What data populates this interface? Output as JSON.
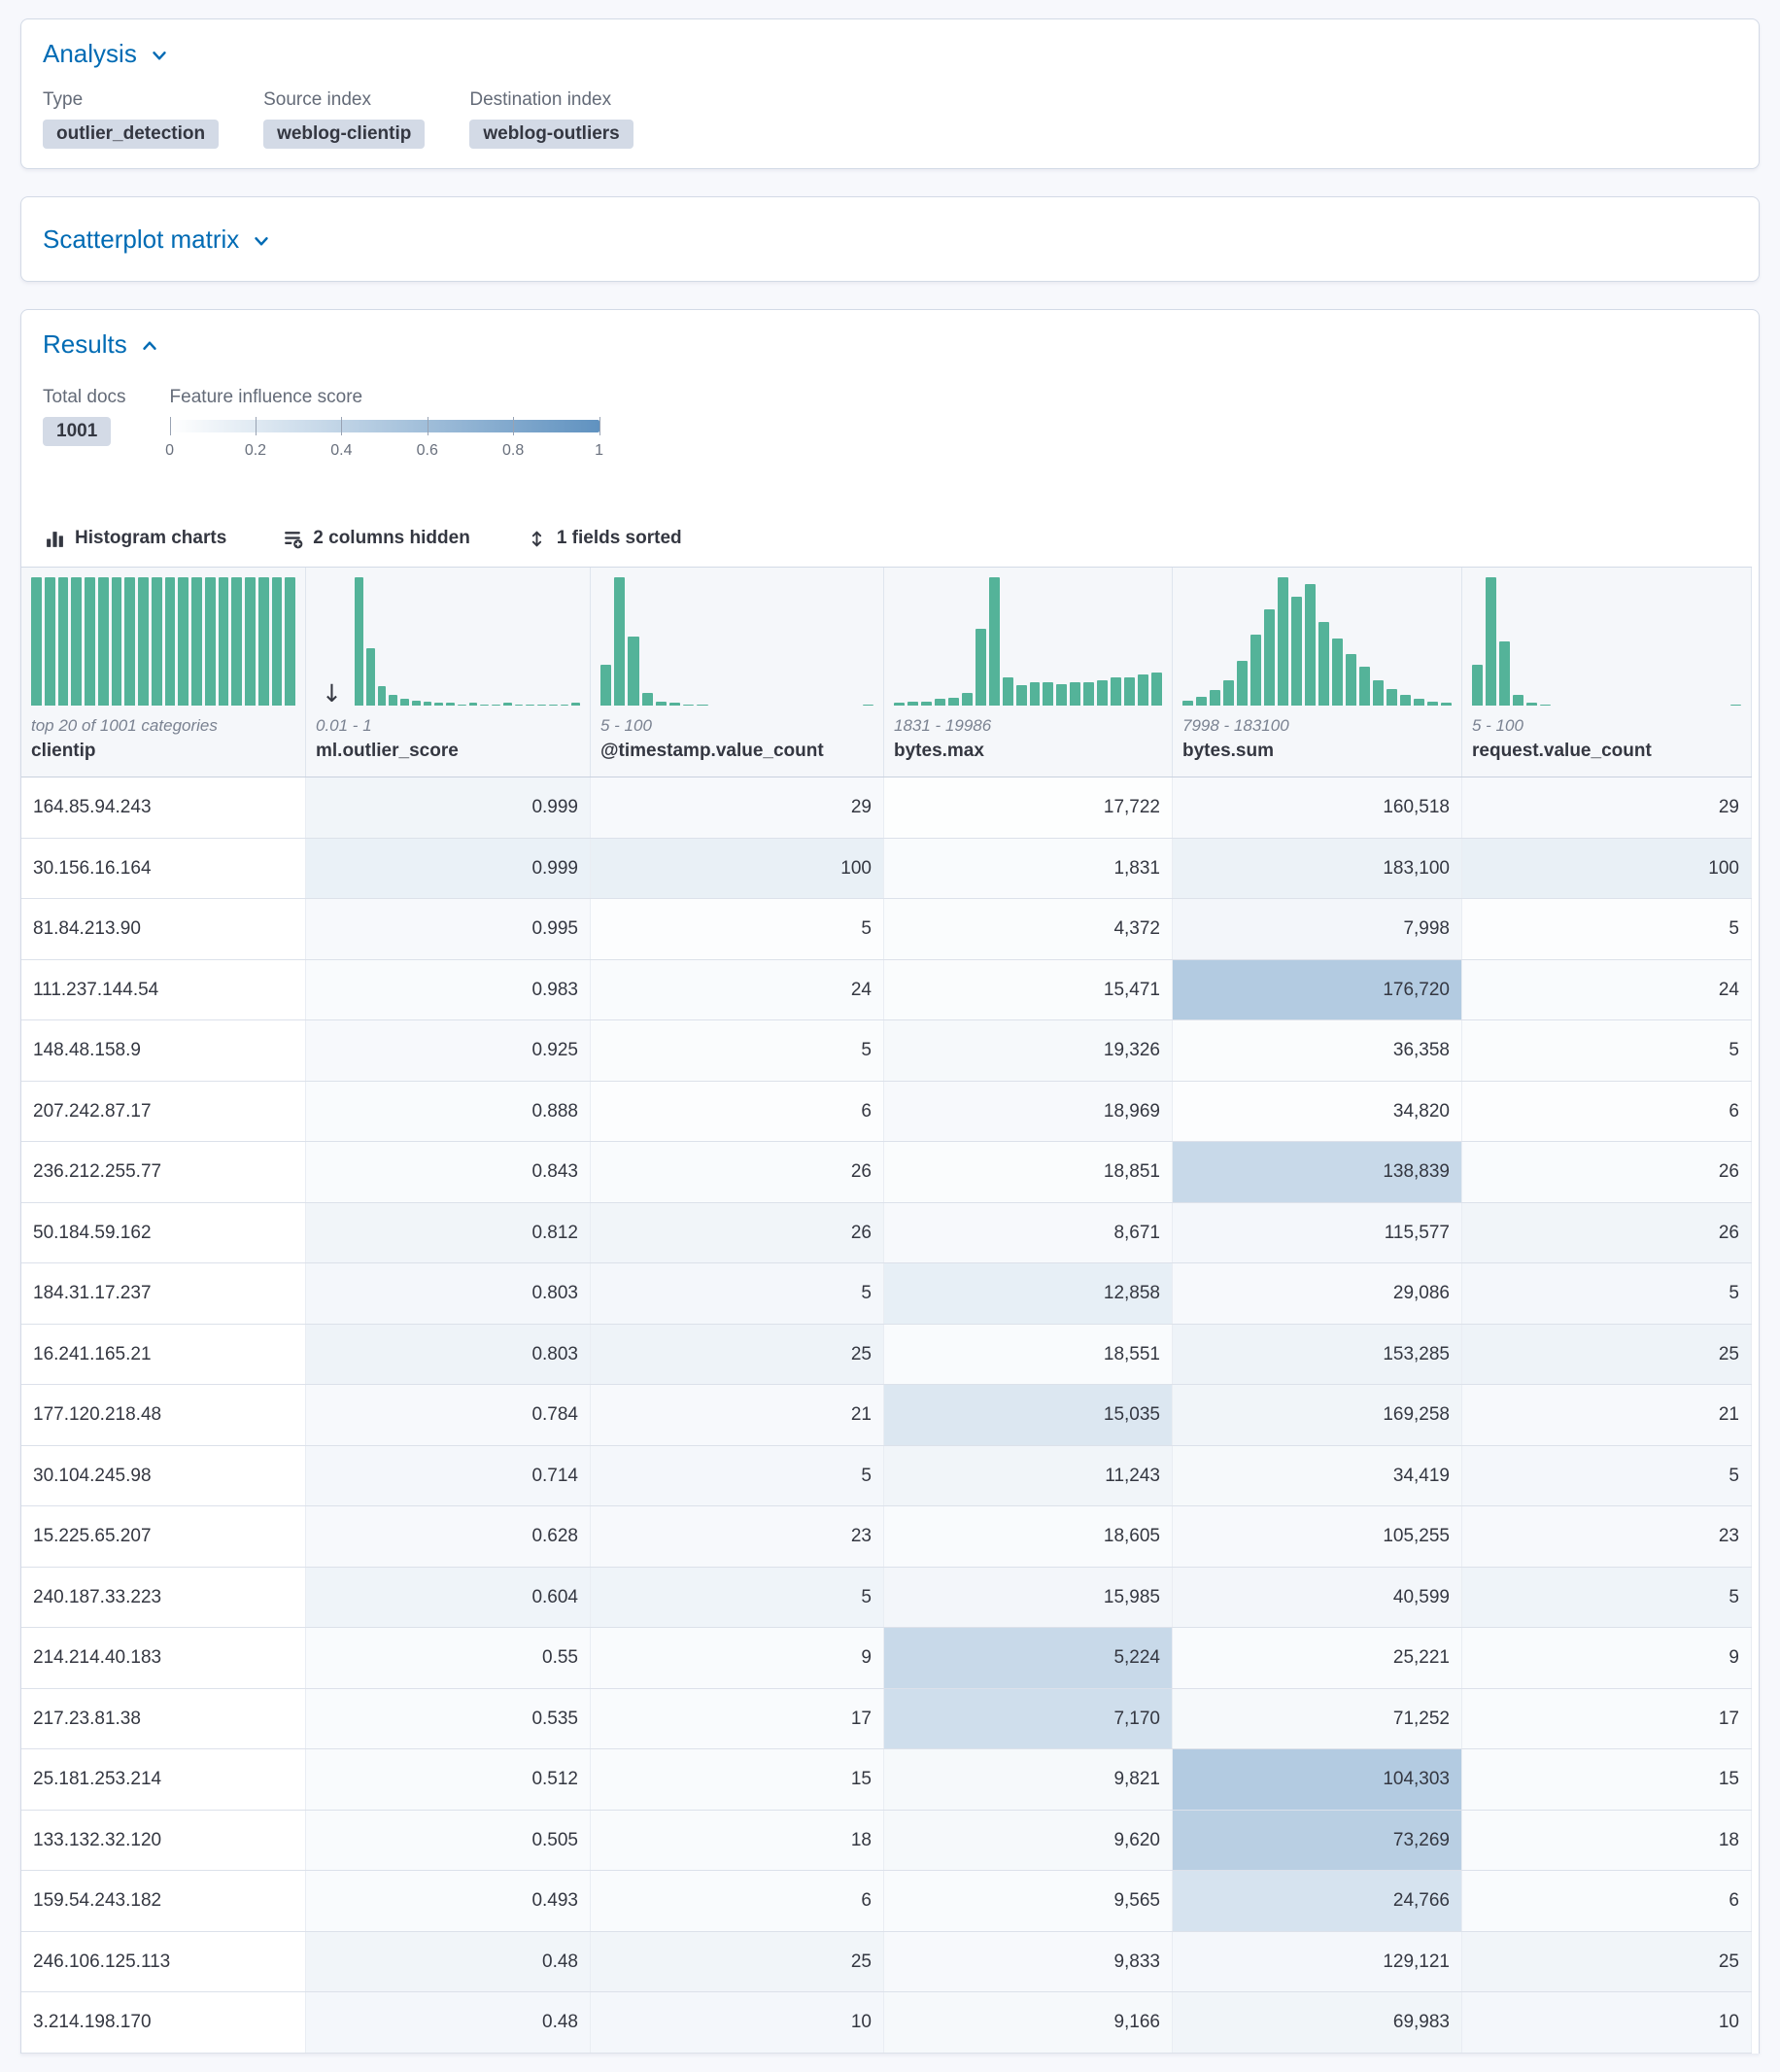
{
  "colors": {
    "accent": "#006BB4",
    "bar": "#54B399",
    "influence_rgb": "96,146,192",
    "badge_bg": "#D3DAE6"
  },
  "icons": {
    "analysis_chevron": "chevron-down",
    "scatterplot_chevron": "chevron-down",
    "results_chevron": "chevron-up",
    "histogram_charts": "bar-histogram",
    "columns_hidden": "list-add",
    "fields_sorted": "sort-arrows",
    "sort_indicator": "arrow-down"
  },
  "analysis": {
    "title": "Analysis",
    "fields": [
      {
        "label": "Type",
        "value": "outlier_detection"
      },
      {
        "label": "Source index",
        "value": "weblog-clientip"
      },
      {
        "label": "Destination index",
        "value": "weblog-outliers"
      }
    ]
  },
  "scatterplot": {
    "title": "Scatterplot matrix"
  },
  "results": {
    "title": "Results",
    "total_docs_label": "Total docs",
    "total_docs_value": "1001",
    "influence_label": "Feature influence score",
    "legend_ticks": [
      "0",
      "0.2",
      "0.4",
      "0.6",
      "0.8",
      "1"
    ],
    "toolbar": {
      "histogram_charts": "Histogram charts",
      "columns_hidden": "2 columns hidden",
      "fields_sorted": "1 fields sorted"
    }
  },
  "grid": {
    "columns": [
      {
        "id": "clientip",
        "name": "clientip",
        "range": "top 20 of 1001 categories",
        "sorted": false,
        "hist": [
          1,
          1,
          1,
          1,
          1,
          1,
          1,
          1,
          1,
          1,
          1,
          1,
          1,
          1,
          1,
          1,
          1,
          1,
          1,
          1
        ]
      },
      {
        "id": "outlier-score",
        "name": "ml.outlier_score",
        "range": "0.01 - 1",
        "sorted": true,
        "hist": [
          1,
          0.45,
          0.15,
          0.08,
          0.05,
          0.04,
          0.03,
          0.02,
          0.02,
          0.01,
          0.02,
          0.01,
          0.01,
          0.02,
          0.01,
          0.01,
          0.01,
          0.01,
          0.01,
          0.02
        ]
      },
      {
        "id": "timestamp-value-count",
        "name": "@timestamp.value_count",
        "range": "5 - 100",
        "sorted": false,
        "hist": [
          0.32,
          1,
          0.54,
          0.1,
          0.03,
          0.02,
          0.01,
          0.01,
          0,
          0,
          0,
          0,
          0,
          0,
          0,
          0,
          0,
          0,
          0,
          0.01
        ]
      },
      {
        "id": "bytes-max",
        "name": "bytes.max",
        "range": "1831 - 19986",
        "sorted": false,
        "hist": [
          0.02,
          0.03,
          0.03,
          0.05,
          0.06,
          0.1,
          0.6,
          1,
          0.22,
          0.16,
          0.18,
          0.18,
          0.17,
          0.18,
          0.18,
          0.2,
          0.22,
          0.22,
          0.24,
          0.26
        ]
      },
      {
        "id": "bytes-sum",
        "name": "bytes.sum",
        "range": "7998 - 183100",
        "sorted": false,
        "hist": [
          0.04,
          0.07,
          0.12,
          0.2,
          0.35,
          0.55,
          0.75,
          1,
          0.85,
          0.95,
          0.65,
          0.52,
          0.4,
          0.3,
          0.2,
          0.13,
          0.08,
          0.05,
          0.03,
          0.02
        ]
      },
      {
        "id": "request-value-count",
        "name": "request.value_count",
        "range": "5 - 100",
        "sorted": false,
        "hist": [
          0.32,
          1,
          0.5,
          0.08,
          0.02,
          0.01,
          0,
          0,
          0,
          0,
          0,
          0,
          0,
          0,
          0,
          0,
          0,
          0,
          0,
          0.01
        ]
      }
    ],
    "rows": [
      {
        "values": [
          "164.85.94.243",
          "0.999",
          "29",
          "17,722",
          "160,518",
          "29"
        ],
        "shades": [
          0,
          0.09,
          0.05,
          0.01,
          0.05,
          0.05
        ]
      },
      {
        "values": [
          "30.156.16.164",
          "0.999",
          "100",
          "1,831",
          "183,100",
          "100"
        ],
        "shades": [
          0,
          0.13,
          0.14,
          0.04,
          0.12,
          0.14
        ]
      },
      {
        "values": [
          "81.84.213.90",
          "0.995",
          "5",
          "4,372",
          "7,998",
          "5"
        ],
        "shades": [
          0,
          0.05,
          0.02,
          0.03,
          0.08,
          0.02
        ]
      },
      {
        "values": [
          "111.237.144.54",
          "0.983",
          "24",
          "15,471",
          "176,720",
          "24"
        ],
        "shades": [
          0,
          0.04,
          0.04,
          0.03,
          0.48,
          0.04
        ]
      },
      {
        "values": [
          "148.48.158.9",
          "0.925",
          "5",
          "19,326",
          "36,358",
          "5"
        ],
        "shades": [
          0,
          0.05,
          0.03,
          0.06,
          0.03,
          0.03
        ]
      },
      {
        "values": [
          "207.242.87.17",
          "0.888",
          "6",
          "18,969",
          "34,820",
          "6"
        ],
        "shades": [
          0,
          0.04,
          0.02,
          0.05,
          0.02,
          0.02
        ]
      },
      {
        "values": [
          "236.212.255.77",
          "0.843",
          "26",
          "18,851",
          "138,839",
          "26"
        ],
        "shades": [
          0,
          0.04,
          0.04,
          0.03,
          0.35,
          0.04
        ]
      },
      {
        "values": [
          "50.184.59.162",
          "0.812",
          "26",
          "8,671",
          "115,577",
          "26"
        ],
        "shades": [
          0,
          0.09,
          0.09,
          0.05,
          0.07,
          0.09
        ]
      },
      {
        "values": [
          "184.31.17.237",
          "0.803",
          "5",
          "12,858",
          "29,086",
          "5"
        ],
        "shades": [
          0,
          0.07,
          0.07,
          0.15,
          0.05,
          0.07
        ]
      },
      {
        "values": [
          "16.241.165.21",
          "0.803",
          "25",
          "18,551",
          "153,285",
          "25"
        ],
        "shades": [
          0,
          0.11,
          0.11,
          0.04,
          0.11,
          0.11
        ]
      },
      {
        "values": [
          "177.120.218.48",
          "0.784",
          "21",
          "15,035",
          "169,258",
          "21"
        ],
        "shades": [
          0,
          0.05,
          0.05,
          0.22,
          0.09,
          0.05
        ]
      },
      {
        "values": [
          "30.104.245.98",
          "0.714",
          "5",
          "11,243",
          "34,419",
          "5"
        ],
        "shades": [
          0,
          0.07,
          0.07,
          0.09,
          0.06,
          0.07
        ]
      },
      {
        "values": [
          "15.225.65.207",
          "0.628",
          "23",
          "18,605",
          "105,255",
          "23"
        ],
        "shades": [
          0,
          0.05,
          0.05,
          0.04,
          0.05,
          0.05
        ]
      },
      {
        "values": [
          "240.187.33.223",
          "0.604",
          "5",
          "15,985",
          "40,599",
          "5"
        ],
        "shades": [
          0,
          0.1,
          0.1,
          0.08,
          0.08,
          0.1
        ]
      },
      {
        "values": [
          "214.214.40.183",
          "0.55",
          "9",
          "5,224",
          "25,221",
          "9"
        ],
        "shades": [
          0,
          0.04,
          0.04,
          0.35,
          0.04,
          0.04
        ]
      },
      {
        "values": [
          "217.23.81.38",
          "0.535",
          "17",
          "7,170",
          "71,252",
          "17"
        ],
        "shades": [
          0,
          0.04,
          0.04,
          0.3,
          0.06,
          0.04
        ]
      },
      {
        "values": [
          "25.181.253.214",
          "0.512",
          "15",
          "9,821",
          "104,303",
          "15"
        ],
        "shades": [
          0,
          0.04,
          0.04,
          0.06,
          0.48,
          0.04
        ]
      },
      {
        "values": [
          "133.132.32.120",
          "0.505",
          "18",
          "9,620",
          "73,269",
          "18"
        ],
        "shades": [
          0,
          0.04,
          0.04,
          0.06,
          0.44,
          0.04
        ]
      },
      {
        "values": [
          "159.54.243.182",
          "0.493",
          "6",
          "9,565",
          "24,766",
          "6"
        ],
        "shades": [
          0,
          0.04,
          0.04,
          0.04,
          0.26,
          0.04
        ]
      },
      {
        "values": [
          "246.106.125.113",
          "0.48",
          "25",
          "9,833",
          "129,121",
          "25"
        ],
        "shades": [
          0,
          0.09,
          0.09,
          0.05,
          0.07,
          0.09
        ]
      },
      {
        "values": [
          "3.214.198.170",
          "0.48",
          "10",
          "9,166",
          "69,983",
          "10"
        ],
        "shades": [
          0,
          0.07,
          0.07,
          0.06,
          0.09,
          0.07
        ]
      }
    ]
  }
}
